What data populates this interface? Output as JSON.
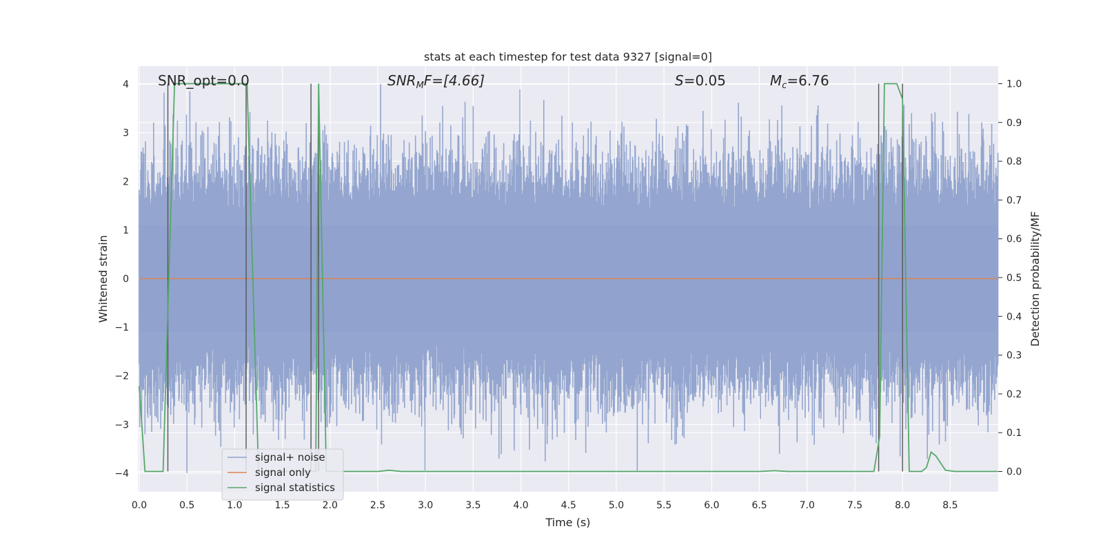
{
  "chart_data": {
    "type": "line",
    "title": "stats at each timestep for test data 9327 [signal=0]",
    "xlabel": "Time (s)",
    "ylabel": "Whitened strain",
    "y2label": "Detection probability/MF",
    "xlim": [
      0.0,
      9.0
    ],
    "ylim": [
      -4.25,
      4.4
    ],
    "y2lim": [
      -0.05,
      1.04
    ],
    "xticks": [
      0.0,
      0.5,
      1.0,
      1.5,
      2.0,
      2.5,
      3.0,
      3.5,
      4.0,
      4.5,
      5.0,
      5.5,
      6.0,
      6.5,
      7.0,
      7.5,
      8.0,
      8.5
    ],
    "xtick_labels": [
      "0.0",
      "0.5",
      "1.0",
      "1.5",
      "2.0",
      "2.5",
      "3.0",
      "3.5",
      "4.0",
      "4.5",
      "5.0",
      "5.5",
      "6.0",
      "6.5",
      "7.0",
      "7.5",
      "8.0",
      "8.5"
    ],
    "yticks": [
      4,
      3,
      2,
      1,
      0,
      -1,
      -2,
      -3,
      -4
    ],
    "ytick_labels": [
      "4",
      "3",
      "2",
      "1",
      "0",
      "−1",
      "−2",
      "−3",
      "−4"
    ],
    "y2ticks": [
      1.0,
      0.9,
      0.8,
      0.7,
      0.6,
      0.5,
      0.4,
      0.3,
      0.2,
      0.1,
      0.0
    ],
    "y2tick_labels": [
      "1.0",
      "0.9",
      "0.8",
      "0.7",
      "0.6",
      "0.5",
      "0.4",
      "0.3",
      "0.2",
      "0.1",
      "0.0"
    ],
    "grid": true,
    "legend_position": "lower-left",
    "annotations": {
      "snr_opt": "SNR_opt=0.0",
      "snr_mf_main": "SNR",
      "snr_mf_sub": "M",
      "snr_mf_rest": "F=[4.66]",
      "s_main": "S",
      "s_rest": "=0.05",
      "mc_main": "M",
      "mc_sub": "c",
      "mc_rest": "=6.76"
    },
    "series": [
      {
        "name": "signal+ noise",
        "color": "#8fa2cc",
        "axis": "left",
        "style": "dense-noise",
        "sample_spacing": 0.005,
        "y_range": [
          -4.0,
          4.0
        ],
        "note_peaks": [
          {
            "x": 0.27,
            "y": 3.15
          },
          {
            "x": 0.4,
            "y": 3.25
          },
          {
            "x": 0.53,
            "y": 3.85
          },
          {
            "x": 2.53,
            "y": 4.0
          },
          {
            "x": 3.18,
            "y": 3.55
          },
          {
            "x": 3.5,
            "y": 3.55
          },
          {
            "x": 4.43,
            "y": 3.35
          },
          {
            "x": 1.53,
            "y": -3.3
          },
          {
            "x": 3.77,
            "y": -3.7
          },
          {
            "x": 5.22,
            "y": -3.95
          },
          {
            "x": 5.63,
            "y": -3.4
          },
          {
            "x": 8.45,
            "y": -3.35
          }
        ]
      },
      {
        "name": "signal only",
        "color": "#dd8452",
        "axis": "left",
        "x": [
          0.0,
          9.0
        ],
        "y": [
          0.0,
          0.0
        ]
      },
      {
        "name": "signal statistics",
        "color": "#55a868",
        "axis": "right",
        "x": [
          0.0,
          0.06,
          0.25,
          0.37,
          0.4,
          1.1,
          1.13,
          1.25,
          1.85,
          1.88,
          1.96,
          2.02,
          2.5,
          2.62,
          2.75,
          6.5,
          6.66,
          6.8,
          7.7,
          7.76,
          7.81,
          7.94,
          8.0,
          8.07,
          8.2,
          8.25,
          8.3,
          8.35,
          8.45,
          8.55,
          9.0
        ],
        "y": [
          0.22,
          0.0,
          0.0,
          1.0,
          1.0,
          1.0,
          1.0,
          0.0,
          0.0,
          1.0,
          0.0,
          0.0,
          0.0,
          0.003,
          0.0,
          0.0,
          0.002,
          0.0,
          0.0,
          0.09,
          1.0,
          1.0,
          0.96,
          0.0,
          0.0,
          0.01,
          0.05,
          0.04,
          0.003,
          0.0,
          0.0
        ]
      }
    ],
    "vertical_markers": [
      0.3,
      1.12,
      1.8,
      1.88,
      7.75,
      8.0
    ]
  }
}
